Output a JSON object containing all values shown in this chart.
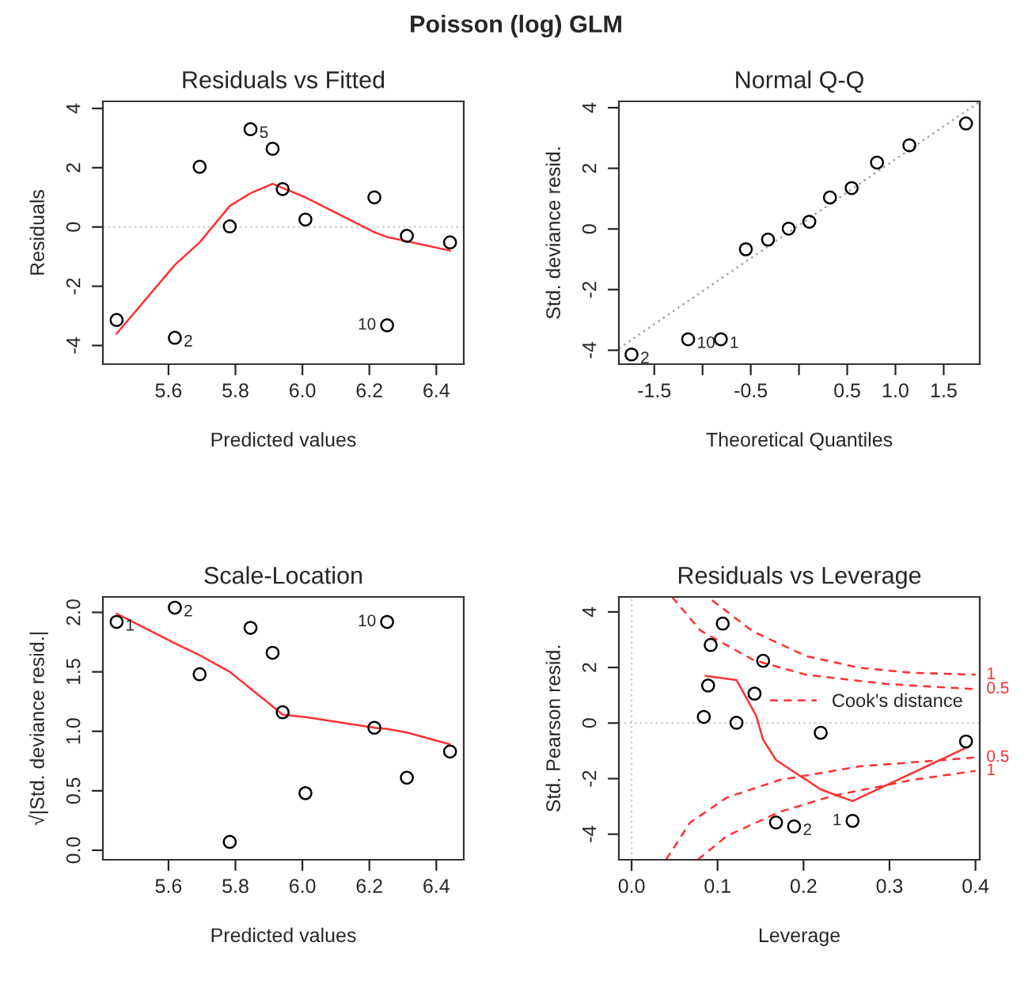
{
  "chart_data": [
    {
      "type": "scatter",
      "title": "Residuals vs Fitted",
      "xlabel": "Predicted values",
      "ylabel": "Residuals",
      "marker": "circle",
      "grid": false,
      "legend": false,
      "annotations": [
        "Poisson (log) GLM",
        {
          "text": "5",
          "x": 5.845,
          "y": 3.3
        },
        {
          "text": "2",
          "x": 5.619,
          "y": -3.74
        },
        {
          "text": "10",
          "x": 6.253,
          "y": -3.32
        }
      ],
      "xlim": [
        5.404,
        6.482
      ],
      "ylim": [
        -4.63,
        4.24
      ],
      "xticks": [
        5.6,
        5.8,
        {
          "value": 6,
          "label": "6.0"
        },
        6.2,
        6.4
      ],
      "yticks": [
        -4,
        -2,
        0,
        2,
        4
      ],
      "ref_lines": [
        {
          "axis": "y",
          "value": 0,
          "color": "#c8c8c8",
          "line_style": "dotted"
        }
      ],
      "series": [
        {
          "type": "scatter",
          "color": "#000000",
          "x": [
            5.445,
            5.619,
            5.693,
            5.783,
            5.845,
            5.911,
            5.941,
            6.009,
            6.215,
            6.253,
            6.312,
            6.441
          ],
          "values": [
            -3.14,
            -3.74,
            2.03,
            0.02,
            3.3,
            2.64,
            1.28,
            0.25,
            1.0,
            -3.32,
            -0.3,
            -0.52
          ]
        },
        {
          "type": "line",
          "color": "#ff3030",
          "line_style": "solid",
          "marker": "none",
          "x": [
            5.445,
            5.619,
            5.693,
            5.783,
            5.845,
            5.911,
            5.941,
            6.009,
            6.215,
            6.253,
            6.312,
            6.441
          ],
          "values": [
            -3.6,
            -1.28,
            -0.52,
            0.71,
            1.14,
            1.46,
            1.32,
            1.0,
            -0.18,
            -0.34,
            -0.48,
            -0.8
          ]
        }
      ]
    },
    {
      "type": "scatter",
      "title": "Normal Q-Q",
      "xlabel": "Theoretical Quantiles",
      "ylabel": "Std. deviance resid.",
      "marker": "circle",
      "grid": false,
      "legend": false,
      "annotations": [
        {
          "text": "2",
          "x": -1.736,
          "y": -4.14
        },
        {
          "text": "10",
          "x": -1.149,
          "y": -3.64
        },
        {
          "text": "1",
          "x": -0.81,
          "y": -3.64
        }
      ],
      "xlim": [
        -1.867,
        1.874
      ],
      "ylim": [
        -4.46,
        4.21
      ],
      "xticks": [
        -1.5,
        {
          "value": -1.0,
          "label": null
        },
        -0.5,
        {
          "value": 0,
          "label": null
        },
        0.5,
        {
          "value": 1.0,
          "label": "1.0"
        },
        1.5
      ],
      "yticks": [
        -4,
        -2,
        0,
        2,
        4
      ],
      "series": [
        {
          "type": "scatter",
          "color": "#000000",
          "x": [
            -1.736,
            -1.149,
            -0.81,
            -0.551,
            -0.321,
            -0.107,
            0.107,
            0.321,
            0.546,
            0.809,
            1.144,
            1.731
          ],
          "values": [
            -4.14,
            -3.64,
            -3.64,
            -0.67,
            -0.35,
            0.01,
            0.24,
            1.04,
            1.35,
            2.19,
            2.76,
            3.48
          ]
        },
        {
          "type": "line",
          "color": "#a0a0a0",
          "line_style": "dotted",
          "marker": "none",
          "x": [
            -1.867,
            1.874
          ],
          "values": [
            -3.94,
            4.2
          ]
        }
      ]
    },
    {
      "type": "scatter",
      "title": "Scale-Location",
      "xlabel": "Predicted values",
      "ylabel": "√|Std. deviance resid.|",
      "marker": "circle",
      "grid": false,
      "legend": false,
      "annotations": [
        {
          "text": "1",
          "x": 5.445,
          "y": 1.92
        },
        {
          "text": "2",
          "x": 5.619,
          "y": 2.04
        },
        {
          "text": "10",
          "x": 6.253,
          "y": 1.92
        }
      ],
      "xlim": [
        5.404,
        6.482
      ],
      "ylim": [
        -0.08,
        2.13
      ],
      "xticks": [
        5.6,
        5.8,
        {
          "value": 6,
          "label": "6.0"
        },
        6.2,
        6.4
      ],
      "yticks": [
        {
          "value": 0,
          "label": "0.0"
        },
        0.5,
        {
          "value": 1,
          "label": "1.0"
        },
        1.5,
        {
          "value": 2,
          "label": "2.0"
        }
      ],
      "series": [
        {
          "type": "scatter",
          "color": "#000000",
          "x": [
            5.445,
            5.619,
            5.693,
            5.783,
            5.845,
            5.911,
            5.941,
            6.009,
            6.215,
            6.253,
            6.312,
            6.441
          ],
          "values": [
            1.92,
            2.04,
            1.48,
            0.07,
            1.87,
            1.66,
            1.16,
            0.48,
            1.03,
            1.92,
            0.61,
            0.83
          ]
        },
        {
          "type": "line",
          "color": "#ff3030",
          "line_style": "solid",
          "marker": "none",
          "x": [
            5.445,
            5.619,
            5.693,
            5.783,
            5.845,
            5.911,
            5.941,
            6.009,
            6.215,
            6.253,
            6.312,
            6.441
          ],
          "values": [
            1.99,
            1.74,
            1.64,
            1.5,
            1.36,
            1.21,
            1.14,
            1.12,
            1.03,
            1.02,
            0.99,
            0.89
          ]
        }
      ]
    },
    {
      "type": "scatter",
      "title": "Residuals vs Leverage",
      "xlabel": "Leverage",
      "ylabel": "Std. Pearson resid.",
      "marker": "circle",
      "grid": false,
      "legend": "right",
      "annotations": [
        {
          "text": "2",
          "x": 0.189,
          "y": -3.72
        },
        {
          "text": "1",
          "x": 0.257,
          "y": -3.52
        },
        {
          "text": "1",
          "x": 0.4,
          "y": 1.74
        },
        {
          "text": "0.5",
          "x": 0.4,
          "y": 1.22
        },
        {
          "text": "0.5",
          "x": 0.4,
          "y": -1.24
        },
        {
          "text": "1",
          "x": 0.4,
          "y": -1.72
        }
      ],
      "xlim": [
        -0.0148,
        0.405
      ],
      "ylim": [
        -4.92,
        4.54
      ],
      "xticks": [
        {
          "value": 0,
          "label": "0.0"
        },
        0.1,
        0.2,
        0.3,
        0.4
      ],
      "yticks": [
        -4,
        -2,
        0,
        2,
        4
      ],
      "ref_lines": [
        {
          "axis": "y",
          "value": 0,
          "color": "#c8c8c8",
          "line_style": "dotted"
        },
        {
          "axis": "x",
          "value": 0,
          "color": "#c8c8c8",
          "line_style": "dotted"
        }
      ],
      "series": [
        {
          "type": "scatter",
          "color": "#000000",
          "x": [
            0.084,
            0.089,
            0.092,
            0.106,
            0.122,
            0.143,
            0.153,
            0.168,
            0.189,
            0.22,
            0.257,
            0.389
          ],
          "values": [
            0.22,
            1.35,
            2.81,
            3.58,
            0.01,
            1.06,
            2.24,
            -3.58,
            -3.72,
            -0.35,
            -3.52,
            -0.66
          ]
        },
        {
          "type": "line",
          "color": "#ff3030",
          "line_style": "solid",
          "marker": "none",
          "x": [
            0.086,
            0.122,
            0.145,
            0.153,
            0.168,
            0.22,
            0.257,
            0.389
          ],
          "values": [
            1.7,
            1.55,
            0.26,
            -0.6,
            -1.33,
            -2.39,
            -2.81,
            -0.89
          ]
        },
        {
          "type": "line",
          "name": "Cook's distance",
          "color": "#ff3030",
          "line_style": "dashed",
          "marker": "none",
          "x": [
            0.047,
            0.08,
            0.1415,
            0.203,
            0.295,
            0.4
          ],
          "values": [
            4.54,
            3.33,
            2.27,
            1.74,
            1.41,
            1.22
          ]
        },
        {
          "type": "line",
          "color": "#ff3030",
          "line_style": "dashed",
          "marker": "none",
          "x": [
            0.0935,
            0.1415,
            0.203,
            0.265,
            0.326,
            0.4
          ],
          "values": [
            4.42,
            3.29,
            2.41,
            1.99,
            1.81,
            1.74
          ]
        },
        {
          "type": "line",
          "color": "#ff3030",
          "line_style": "dashed",
          "marker": "none",
          "x": [
            0.04,
            0.068,
            0.111,
            0.172,
            0.265,
            0.4
          ],
          "values": [
            -4.92,
            -3.58,
            -2.68,
            -2.05,
            -1.56,
            -1.24
          ]
        },
        {
          "type": "line",
          "color": "#ff3030",
          "line_style": "dashed",
          "marker": "none",
          "x": [
            0.077,
            0.111,
            0.172,
            0.234,
            0.326,
            0.4
          ],
          "values": [
            -4.92,
            -4.06,
            -3.2,
            -2.62,
            -2.05,
            -1.72
          ]
        }
      ]
    }
  ]
}
